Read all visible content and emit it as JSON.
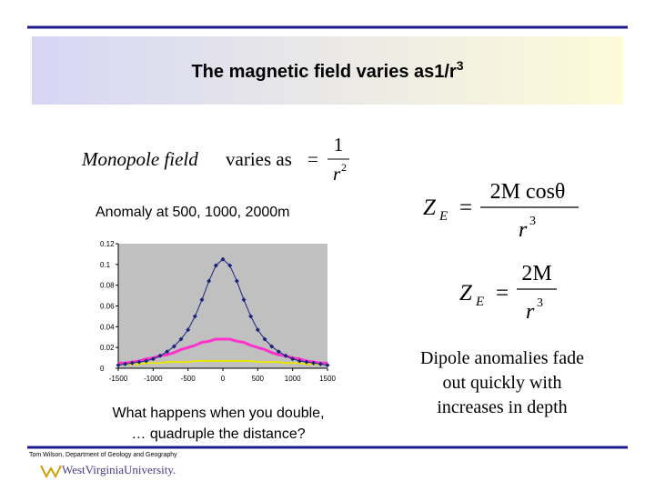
{
  "title": {
    "text": "The magnetic field varies as1/r",
    "superscript": "3"
  },
  "monopole": {
    "label": "Monopole field",
    "varies": "varies as",
    "equals": "=",
    "numerator": "1",
    "denominator": "r",
    "power": "2"
  },
  "anomaly_caption": "Anomaly at 500, 1000, 2000m",
  "chart": {
    "type": "line",
    "x": [
      -1500,
      -1400,
      -1300,
      -1200,
      -1100,
      -1000,
      -900,
      -800,
      -700,
      -600,
      -500,
      -400,
      -300,
      -200,
      -100,
      0,
      100,
      200,
      300,
      400,
      500,
      600,
      700,
      800,
      900,
      1000,
      1100,
      1200,
      1300,
      1400,
      1500
    ],
    "series": [
      {
        "color": "#1a237e",
        "values": [
          0.003,
          0.004,
          0.005,
          0.006,
          0.007,
          0.009,
          0.012,
          0.016,
          0.021,
          0.028,
          0.037,
          0.05,
          0.066,
          0.084,
          0.099,
          0.105,
          0.099,
          0.084,
          0.066,
          0.05,
          0.037,
          0.028,
          0.021,
          0.016,
          0.012,
          0.009,
          0.007,
          0.006,
          0.005,
          0.004,
          0.003
        ]
      },
      {
        "color": "#ff33cc",
        "values": [
          0.005,
          0.005,
          0.006,
          0.007,
          0.009,
          0.01,
          0.012,
          0.013,
          0.015,
          0.018,
          0.02,
          0.022,
          0.025,
          0.026,
          0.028,
          0.028,
          0.028,
          0.026,
          0.025,
          0.022,
          0.02,
          0.018,
          0.015,
          0.013,
          0.012,
          0.01,
          0.009,
          0.007,
          0.006,
          0.005,
          0.005
        ]
      },
      {
        "color": "#e6e600",
        "values": [
          0.004,
          0.004,
          0.004,
          0.004,
          0.005,
          0.005,
          0.005,
          0.006,
          0.006,
          0.006,
          0.006,
          0.007,
          0.007,
          0.007,
          0.007,
          0.007,
          0.007,
          0.007,
          0.007,
          0.007,
          0.006,
          0.006,
          0.006,
          0.006,
          0.005,
          0.005,
          0.005,
          0.004,
          0.004,
          0.004,
          0.004
        ]
      }
    ],
    "xlim": [
      -1500,
      1500
    ],
    "xticks": [
      -1500,
      -1000,
      -500,
      0,
      500,
      1000,
      1500
    ],
    "ylim": [
      0,
      0.12
    ],
    "yticks": [
      0,
      0.02,
      0.04,
      0.06,
      0.08,
      0.1,
      0.12
    ]
  },
  "question": [
    "What happens when you double,",
    "… quadruple the distance?"
  ],
  "equation1": {
    "z": "Z",
    "sub": "E",
    "equals": "=",
    "numerator": "2M cosθ",
    "denominator": "r",
    "power": "3"
  },
  "equation2": {
    "z": "Z",
    "sub": "E",
    "equals": "=",
    "numerator": "2M",
    "denominator": "r",
    "power": "3"
  },
  "conclusion": [
    "Dipole anomalies fade",
    "out quickly with",
    "increases in depth"
  ],
  "footer": "Tom Wilson, Department of Geology and Geography",
  "logo": "WestVirginiaUniversity."
}
